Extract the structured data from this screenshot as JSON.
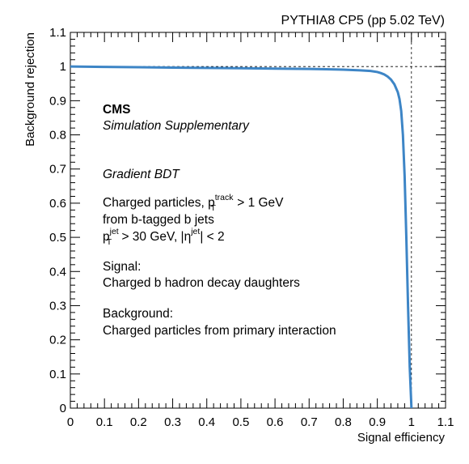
{
  "chart_data": {
    "type": "line",
    "header": "PYTHIA8 CP5 (pp 5.02 TeV)",
    "xlabel": "Signal efficiency",
    "ylabel": "Background rejection",
    "xlim": [
      0,
      1.1
    ],
    "ylim": [
      0,
      1.1
    ],
    "xticks": [
      "0",
      "0.1",
      "0.2",
      "0.3",
      "0.4",
      "0.5",
      "0.6",
      "0.7",
      "0.8",
      "0.9",
      "1",
      "1.1"
    ],
    "yticks": [
      "0",
      "0.1",
      "0.2",
      "0.3",
      "0.4",
      "0.5",
      "0.6",
      "0.7",
      "0.8",
      "0.9",
      "1",
      "1.1"
    ],
    "reference_lines": {
      "x": 1,
      "y": 1,
      "style": "dashed"
    },
    "grid": false,
    "series": [
      {
        "color": "#3d85c6",
        "x": [
          0,
          0.1,
          0.2,
          0.3,
          0.4,
          0.5,
          0.6,
          0.7,
          0.75,
          0.8,
          0.85,
          0.88,
          0.9,
          0.91,
          0.92,
          0.93,
          0.94,
          0.95,
          0.96,
          0.965,
          0.97,
          0.975,
          0.98,
          0.985,
          0.99,
          0.995,
          1.0
        ],
        "y": [
          1.0,
          0.999,
          0.998,
          0.997,
          0.996,
          0.995,
          0.994,
          0.993,
          0.992,
          0.991,
          0.989,
          0.987,
          0.984,
          0.981,
          0.977,
          0.971,
          0.962,
          0.948,
          0.925,
          0.905,
          0.87,
          0.8,
          0.68,
          0.5,
          0.3,
          0.12,
          0.0
        ]
      }
    ]
  },
  "annotations": {
    "cms": "CMS",
    "supplementary": "Simulation Supplementary",
    "method": "Gradient BDT",
    "sel1_pre": "Charged particles, p",
    "sel1_sup": "track",
    "sel1_sub": "T",
    "sel1_post": " > 1 GeV",
    "sel2": "from b-tagged b jets",
    "sel3_p": "p",
    "sel3_sup": "jet",
    "sel3_sub": "T",
    "sel3_mid": " > 30 GeV, |η",
    "sel3_sup2": "jet",
    "sel3_post": "| < 2",
    "signal_title": "Signal:",
    "signal_desc": "Charged b hadron decay daughters",
    "background_title": "Background:",
    "background_desc": "Charged particles from primary interaction"
  }
}
